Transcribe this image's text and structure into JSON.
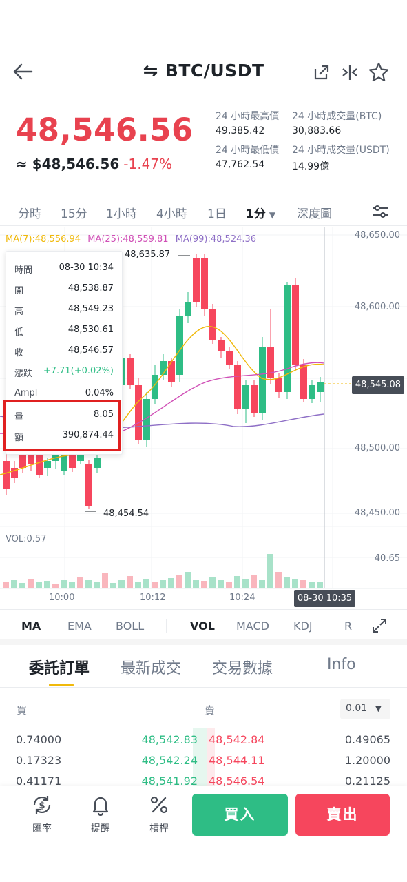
{
  "header": {
    "pair": "BTC/USDT"
  },
  "price": {
    "last": "48,546.56",
    "usd_equiv": "≈ $48,546.56",
    "change": "-1.47%"
  },
  "stats": {
    "high_label": "24 小時最高價",
    "high_value": "49,385.42",
    "vol_btc_label": "24 小時成交量(BTC)",
    "vol_btc_value": "30,883.66",
    "low_label": "24 小時最低價",
    "low_value": "47,762.54",
    "vol_usdt_label": "24 小時成交量(USDT)",
    "vol_usdt_value": "14.99億"
  },
  "time_tabs": [
    "分時",
    "15分",
    "1小時",
    "4小時",
    "1日",
    "1分",
    "深度圖"
  ],
  "chart": {
    "ma7": "MA(7):48,556.94",
    "ma25": "MA(25):48,559.81",
    "ma99": "MA(99):48,524.36",
    "y_ticks": [
      "48,650.00",
      "48,600.00",
      "48,545.08",
      "48,500.00",
      "48,450.00"
    ],
    "current_price_tag": "48,545.08",
    "high_mark": "48,635.87",
    "low_mark": "48,454.54",
    "vol_label": "VOL:0.57",
    "vol_tick": "40.65",
    "x_ticks": [
      "10:00",
      "10:12",
      "10:24"
    ],
    "cursor_time": "08-30 10:35",
    "colors": {
      "up": "#2ebd85",
      "down": "#f6465d",
      "ma7": "#f0b90b",
      "ma25": "#d04fb6",
      "ma99": "#8e6fc6"
    }
  },
  "tooltip": {
    "rows": [
      {
        "k": "時間",
        "v": "08-30 10:34"
      },
      {
        "k": "開",
        "v": "48,538.87"
      },
      {
        "k": "高",
        "v": "48,549.23"
      },
      {
        "k": "低",
        "v": "48,530.61"
      },
      {
        "k": "收",
        "v": "48,546.57"
      },
      {
        "k": "漲跌",
        "v": "+7.71(+0.02%)"
      },
      {
        "k": "Ampl",
        "v": "0.04%"
      },
      {
        "k": "量",
        "v": "8.05"
      },
      {
        "k": "額",
        "v": "390,874.44"
      }
    ]
  },
  "indicators": [
    "MA",
    "EMA",
    "BOLL",
    "VOL",
    "MACD",
    "KDJ",
    "R"
  ],
  "order_tabs": [
    "委託訂單",
    "最新成交",
    "交易數據",
    "Info"
  ],
  "orderbook": {
    "buy_label": "買",
    "sell_label": "賣",
    "precision": "0.01",
    "rows": [
      {
        "bid_qty": "0.74000",
        "bid_price": "48,542.83",
        "ask_price": "48,542.84",
        "ask_qty": "0.49065"
      },
      {
        "bid_qty": "0.17323",
        "bid_price": "48,542.24",
        "ask_price": "48,544.11",
        "ask_qty": "1.20000"
      },
      {
        "bid_qty": "0.41171",
        "bid_price": "48,541.92",
        "ask_price": "48,546.54",
        "ask_qty": "0.21125"
      }
    ]
  },
  "bottom": {
    "rate": "匯率",
    "alert": "提醒",
    "leverage": "槓桿",
    "buy": "買入",
    "sell": "賣出"
  }
}
